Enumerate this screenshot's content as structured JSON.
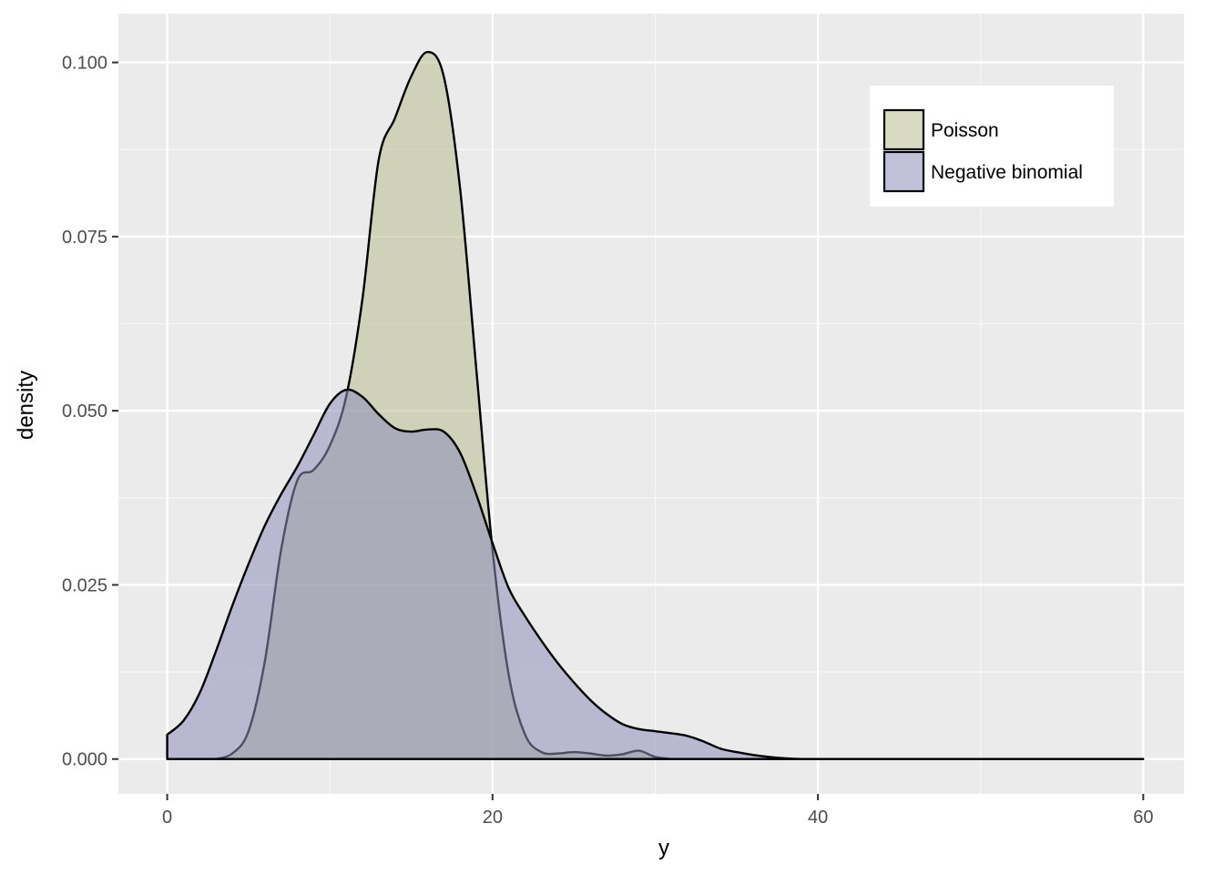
{
  "chart_data": {
    "type": "area",
    "xlabel": "y",
    "ylabel": "density",
    "xlim": [
      -3,
      62.5
    ],
    "ylim": [
      -0.005,
      0.107
    ],
    "x_ticks": [
      0,
      20,
      40,
      60
    ],
    "x_tick_labels": [
      "0",
      "20",
      "40",
      "60"
    ],
    "y_ticks": [
      0.0,
      0.025,
      0.05,
      0.075,
      0.1
    ],
    "y_tick_labels": [
      "0.000",
      "0.025",
      "0.050",
      "0.075",
      "0.100"
    ],
    "grid": true,
    "panel_background": "#ebebeb",
    "legend_position": "top-right",
    "series": [
      {
        "name": "Poisson",
        "color": "#b8bb8e",
        "x": [
          3,
          4,
          5,
          6,
          7,
          8,
          9,
          10,
          11,
          12,
          13,
          14,
          15,
          16,
          17,
          18,
          19,
          20,
          21,
          22,
          23,
          24,
          25,
          26,
          27,
          28,
          29,
          30,
          31
        ],
        "y": [
          0.0,
          0.0008,
          0.004,
          0.014,
          0.03,
          0.04,
          0.0415,
          0.045,
          0.052,
          0.066,
          0.086,
          0.092,
          0.098,
          0.1015,
          0.098,
          0.082,
          0.056,
          0.03,
          0.012,
          0.0035,
          0.001,
          0.0008,
          0.001,
          0.0008,
          0.0005,
          0.0007,
          0.0012,
          0.0003,
          0.0
        ]
      },
      {
        "name": "Negative binomial",
        "color": "#8e8ebb",
        "x": [
          0,
          1,
          2,
          3,
          4,
          5,
          6,
          7,
          8,
          9,
          10,
          11,
          12,
          13,
          14,
          15,
          16,
          17,
          18,
          19,
          20,
          21,
          22,
          23,
          24,
          25,
          26,
          27,
          28,
          29,
          30,
          31,
          32,
          33,
          34,
          35,
          36,
          37,
          38,
          39,
          40,
          41,
          42,
          43,
          44,
          45,
          50,
          55,
          60
        ],
        "y": [
          0.0035,
          0.0055,
          0.0095,
          0.0155,
          0.022,
          0.028,
          0.0335,
          0.038,
          0.042,
          0.0465,
          0.051,
          0.053,
          0.052,
          0.0495,
          0.0475,
          0.047,
          0.0473,
          0.047,
          0.044,
          0.038,
          0.031,
          0.0245,
          0.0205,
          0.017,
          0.0138,
          0.011,
          0.0085,
          0.0065,
          0.005,
          0.0043,
          0.004,
          0.0037,
          0.0033,
          0.0025,
          0.0015,
          0.001,
          0.0006,
          0.0003,
          0.0001,
          0.0,
          0.0,
          0.0,
          0.0,
          0.0,
          0.0,
          0.0,
          0.0,
          0.0,
          0.0
        ]
      }
    ]
  }
}
